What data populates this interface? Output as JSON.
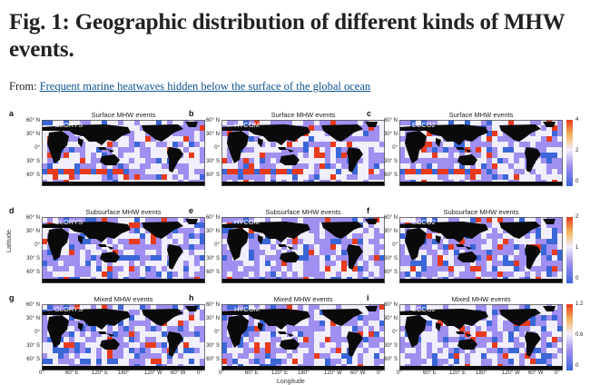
{
  "header": {
    "title": "Fig. 1: Geographic distribution of different kinds of MHW events.",
    "from_label": "From:",
    "article_link": "Frequent marine heatwaves hidden below the surface of the global ocean"
  },
  "figure": {
    "x_axis_title": "Longitude",
    "y_axis_title": "Latitude",
    "lat_ticks": [
      "60° N",
      "30° N",
      "0°",
      "30° S",
      "60° S"
    ],
    "lon_ticks": [
      "0°",
      "60° E",
      "120° E",
      "180°",
      "120° W",
      "60° W",
      "0°"
    ],
    "rows": [
      {
        "title": "Surface MHW events",
        "labels": [
          "a",
          "b",
          "c"
        ],
        "cbar_ticks": [
          "4",
          "2",
          "0"
        ]
      },
      {
        "title": "Subsurface MHW events",
        "labels": [
          "d",
          "e",
          "f"
        ],
        "cbar_ticks": [
          "2",
          "1",
          "0"
        ]
      },
      {
        "title": "Mixed MHW events",
        "labels": [
          "g",
          "h",
          "i"
        ],
        "cbar_ticks": [
          "1.2",
          "0.6",
          "0"
        ]
      }
    ],
    "datasets": [
      "GLORYS",
      "HYCOM",
      "ECCO2"
    ]
  },
  "colors": {
    "land": "#0a0a0a",
    "low": "#f2eefc",
    "mid": "#a08ff0",
    "blue": "#3a66d8",
    "high": "#e83a1c",
    "link": "#0b5394"
  }
}
